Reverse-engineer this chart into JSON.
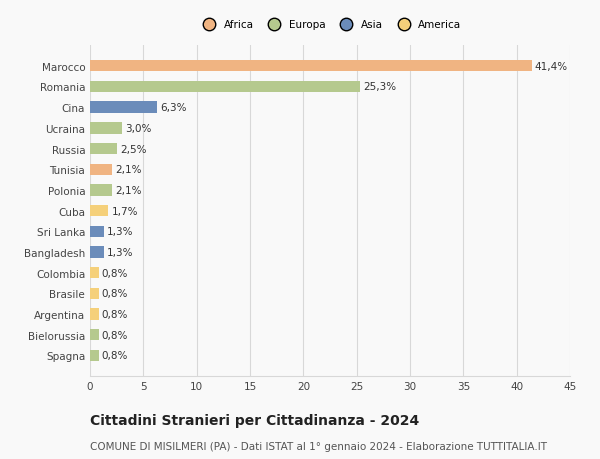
{
  "categories": [
    "Marocco",
    "Romania",
    "Cina",
    "Ucraina",
    "Russia",
    "Tunisia",
    "Polonia",
    "Cuba",
    "Sri Lanka",
    "Bangladesh",
    "Colombia",
    "Brasile",
    "Argentina",
    "Bielorussia",
    "Spagna"
  ],
  "values": [
    41.4,
    25.3,
    6.3,
    3.0,
    2.5,
    2.1,
    2.1,
    1.7,
    1.3,
    1.3,
    0.8,
    0.8,
    0.8,
    0.8,
    0.8
  ],
  "labels": [
    "41,4%",
    "25,3%",
    "6,3%",
    "3,0%",
    "2,5%",
    "2,1%",
    "2,1%",
    "1,7%",
    "1,3%",
    "1,3%",
    "0,8%",
    "0,8%",
    "0,8%",
    "0,8%",
    "0,8%"
  ],
  "colors": [
    "#f0b482",
    "#b5c98e",
    "#6b8cba",
    "#b5c98e",
    "#b5c98e",
    "#f0b482",
    "#b5c98e",
    "#f5d07a",
    "#6b8cba",
    "#6b8cba",
    "#f5d07a",
    "#f5d07a",
    "#f5d07a",
    "#b5c98e",
    "#b5c98e"
  ],
  "legend_labels": [
    "Africa",
    "Europa",
    "Asia",
    "America"
  ],
  "legend_colors": [
    "#f0b482",
    "#b5c98e",
    "#6b8cba",
    "#f5d07a"
  ],
  "title": "Cittadini Stranieri per Cittadinanza - 2024",
  "subtitle": "COMUNE DI MISILMERI (PA) - Dati ISTAT al 1° gennaio 2024 - Elaborazione TUTTITALIA.IT",
  "xlim": [
    0,
    45
  ],
  "xticks": [
    0,
    5,
    10,
    15,
    20,
    25,
    30,
    35,
    40,
    45
  ],
  "background_color": "#f9f9f9",
  "grid_color": "#d8d8d8",
  "bar_height": 0.55,
  "label_fontsize": 7.5,
  "tick_fontsize": 7.5,
  "title_fontsize": 10,
  "subtitle_fontsize": 7.5
}
